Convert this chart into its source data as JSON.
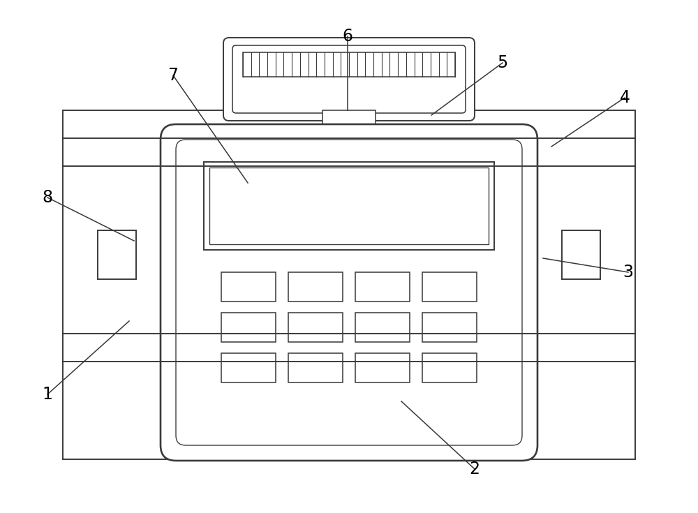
{
  "bg_color": "#ffffff",
  "line_color": "#3a3a3a",
  "line_width": 1.4,
  "fig_width": 10.0,
  "fig_height": 7.35,
  "label_fontsize": 17
}
